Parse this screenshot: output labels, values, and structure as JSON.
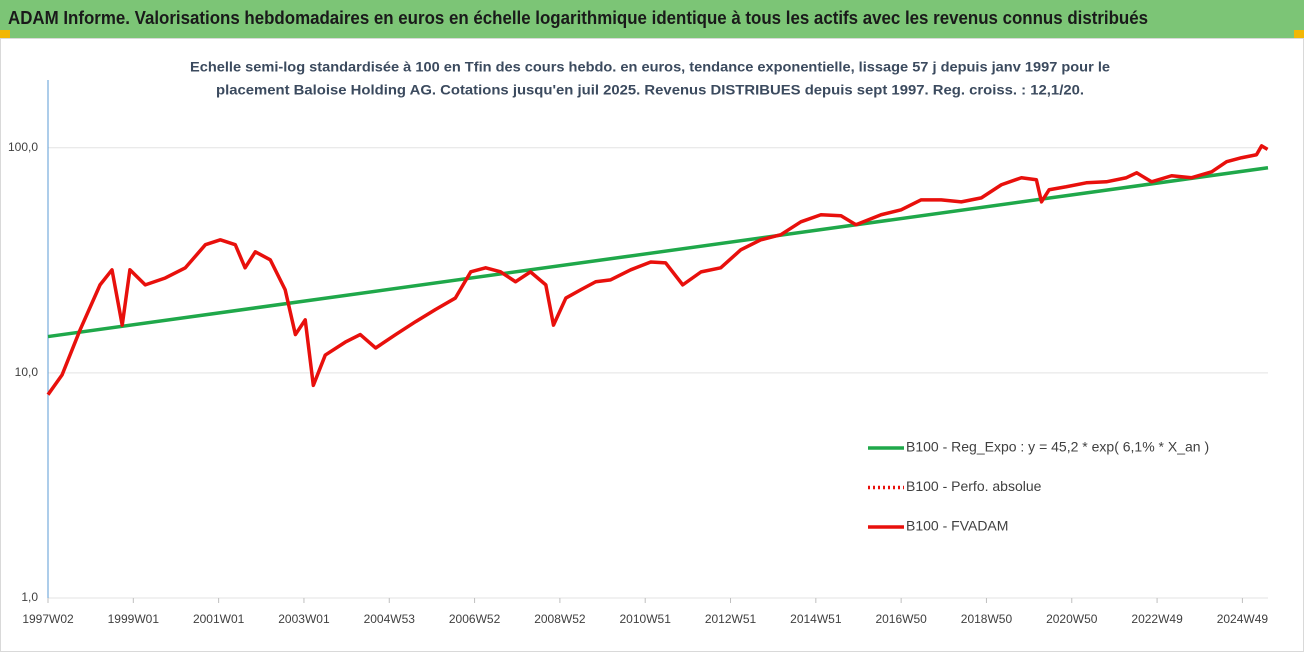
{
  "chart_data": {
    "type": "line",
    "title": "ADAM Informe. Valorisations hebdomadaires en euros en échelle logarithmique identique à tous les actifs avec les revenus connus distribués",
    "subtitle": [
      "Echelle semi-log standardisée à 100 en Tfin des cours hebdo. en euros, tendance exponentielle, lissage 57 j depuis janv 1997 pour le",
      "placement Baloise Holding AG. Cotations jusqu'en juil 2025. Revenus DISTRIBUES depuis sept 1997. Reg. croiss. : 12,1/20."
    ],
    "log_y": true,
    "grid": true,
    "legend": "lower right",
    "xlim": [
      1997.0,
      2025.6
    ],
    "xticks": [
      {
        "value": 1997.0,
        "label": "1997W02"
      },
      {
        "value": 1999.0,
        "label": "1999W01"
      },
      {
        "value": 2001.0,
        "label": "2001W01"
      },
      {
        "value": 2003.0,
        "label": "2003W01"
      },
      {
        "value": 2005.0,
        "label": "2004W53"
      },
      {
        "value": 2007.0,
        "label": "2006W52"
      },
      {
        "value": 2009.0,
        "label": "2008W52"
      },
      {
        "value": 2011.0,
        "label": "2010W51"
      },
      {
        "value": 2013.0,
        "label": "2012W51"
      },
      {
        "value": 2015.0,
        "label": "2014W51"
      },
      {
        "value": 2017.0,
        "label": "2016W50"
      },
      {
        "value": 2019.0,
        "label": "2018W50"
      },
      {
        "value": 2021.0,
        "label": "2020W50"
      },
      {
        "value": 2023.0,
        "label": "2022W49"
      },
      {
        "value": 2025.0,
        "label": "2024W49"
      }
    ],
    "ylim": [
      1,
      200
    ],
    "yticks": [
      {
        "value": 1,
        "label": "1,0"
      },
      {
        "value": 10,
        "label": "10,0"
      },
      {
        "value": 100,
        "label": "100,0"
      }
    ],
    "series": [
      {
        "name": "B100 - Reg_Expo : y = 45,2 * exp( 6,1% *  X_an )",
        "color": "#1fa84a",
        "dash": "solid",
        "x": [
          1997.0,
          2025.6
        ],
        "values": [
          14.5,
          81.5
        ]
      },
      {
        "name": "B100 - Perfo. absolue",
        "color": "#e8100c",
        "dash": "dotted"
      },
      {
        "name": "B100 - FVADAM",
        "color": "#e8100c",
        "dash": "solid",
        "x": [
          1997.0,
          1997.33,
          1997.75,
          1998.22,
          1998.5,
          1998.74,
          1998.92,
          1999.28,
          1999.75,
          2000.22,
          2000.69,
          2001.04,
          2001.39,
          2001.62,
          2001.86,
          2002.21,
          2002.56,
          2002.8,
          2003.03,
          2003.22,
          2003.5,
          2003.97,
          2004.32,
          2004.68,
          2005.15,
          2005.62,
          2006.08,
          2006.55,
          2006.91,
          2007.26,
          2007.61,
          2007.96,
          2008.31,
          2008.67,
          2008.85,
          2009.14,
          2009.49,
          2009.84,
          2010.19,
          2010.66,
          2011.13,
          2011.48,
          2011.88,
          2012.31,
          2012.77,
          2013.24,
          2013.71,
          2014.18,
          2014.65,
          2015.12,
          2015.59,
          2015.94,
          2016.53,
          2017.0,
          2017.47,
          2017.94,
          2018.41,
          2018.88,
          2019.35,
          2019.82,
          2020.17,
          2020.29,
          2020.47,
          2020.87,
          2021.34,
          2021.81,
          2022.28,
          2022.52,
          2022.87,
          2023.34,
          2023.81,
          2024.28,
          2024.63,
          2024.98,
          2025.33,
          2025.45,
          2025.59
        ],
        "values": [
          8.0,
          9.8,
          15.5,
          24.6,
          28.7,
          16.3,
          28.7,
          24.6,
          26.4,
          29.3,
          37.1,
          39.0,
          37.1,
          29.3,
          34.5,
          31.8,
          23.4,
          14.8,
          17.2,
          8.8,
          12.0,
          13.7,
          14.8,
          12.9,
          14.8,
          16.9,
          19.1,
          21.5,
          28.1,
          29.3,
          28.1,
          25.4,
          28.1,
          24.6,
          16.3,
          21.5,
          23.4,
          25.4,
          25.9,
          28.7,
          31.1,
          30.8,
          24.6,
          28.1,
          29.3,
          35.2,
          39.0,
          41.1,
          46.9,
          50.4,
          49.9,
          45.5,
          50.4,
          53.0,
          58.7,
          58.7,
          57.5,
          59.9,
          68.5,
          73.6,
          72.1,
          57.5,
          65.1,
          67.1,
          69.9,
          70.6,
          73.6,
          77.4,
          70.6,
          75.1,
          73.6,
          78.2,
          86.7,
          90.3,
          93.1,
          102,
          98.4
        ]
      }
    ]
  }
}
